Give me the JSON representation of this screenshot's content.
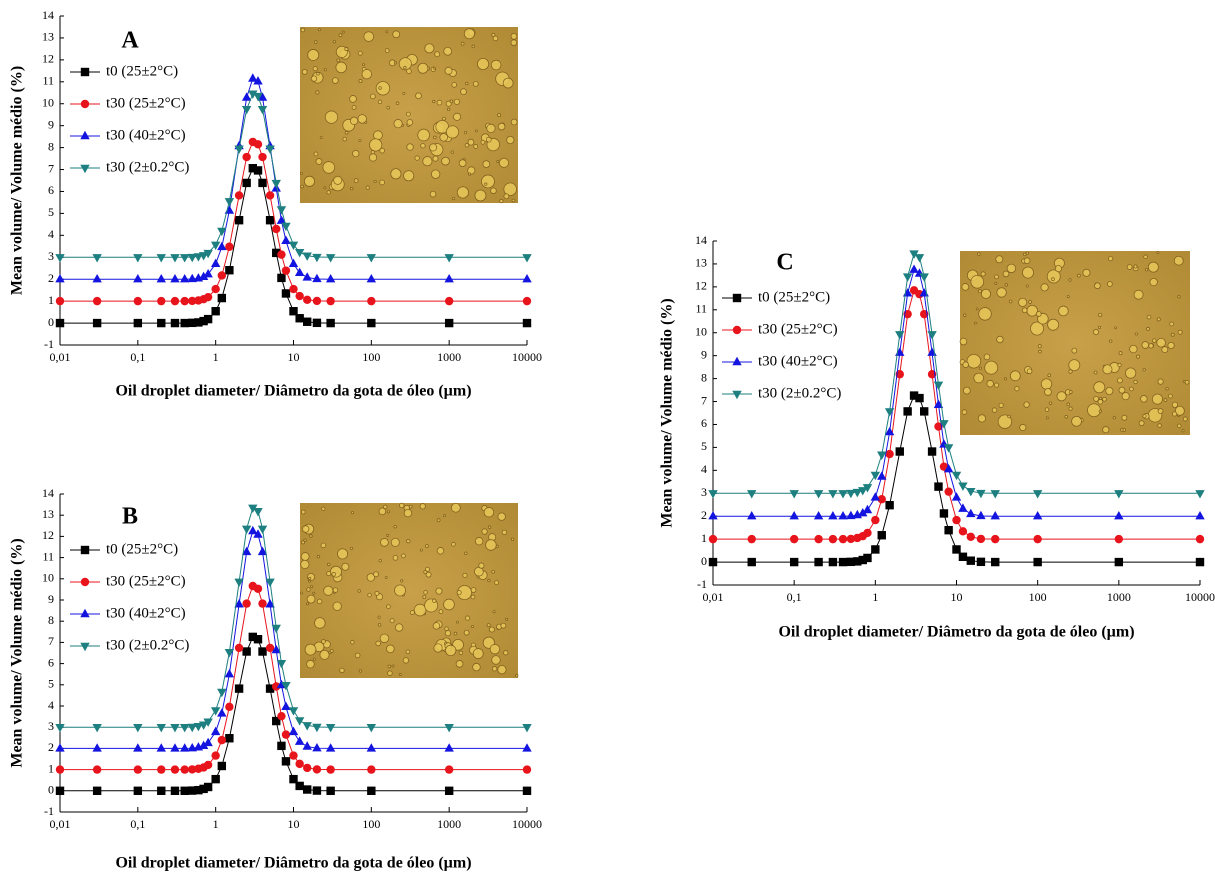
{
  "chart_data": [
    {
      "type": "line",
      "title": "A",
      "xscale": "log",
      "x_label": "Oil droplet diameter/ Diâmetro da gota de óleo (µm)",
      "y_label": "Mean volume/ Volume médio (%)",
      "xlim": [
        0.01,
        10000
      ],
      "ylim": [
        -1,
        14
      ],
      "xticks": [
        {
          "value": 0.01,
          "label": "0,01"
        },
        {
          "value": 0.1,
          "label": "0,1"
        },
        1,
        10,
        100,
        1000,
        10000
      ],
      "yticks": [
        -1,
        0,
        1,
        2,
        3,
        4,
        5,
        6,
        7,
        8,
        9,
        10,
        11,
        12,
        13,
        14
      ],
      "x": [
        0.01,
        0.03,
        0.1,
        0.2,
        0.3,
        0.4,
        0.5,
        0.6,
        0.7,
        0.8,
        1,
        1.2,
        1.5,
        2,
        2.5,
        3,
        3.5,
        4,
        5,
        6,
        7,
        8,
        10,
        12,
        15,
        20,
        30,
        100,
        1000,
        10000
      ],
      "series": [
        {
          "name": "t0 (25±2°C)",
          "color": "#000000",
          "marker": "square",
          "values": [
            0,
            0,
            0,
            0,
            0,
            0,
            0.01,
            0.03,
            0.09,
            0.18,
            0.54,
            1.14,
            2.41,
            4.69,
            6.39,
            7.06,
            6.96,
            6.39,
            4.69,
            3.2,
            2.06,
            1.35,
            0.54,
            0.22,
            0.06,
            0.01,
            0,
            0,
            0,
            0
          ]
        },
        {
          "name": "t30 (25±2°C)",
          "color": "#e8141c",
          "marker": "circle",
          "values": [
            1,
            1,
            1,
            1,
            1,
            1,
            1.01,
            1.03,
            1.09,
            1.18,
            1.55,
            2.17,
            3.48,
            5.82,
            7.57,
            8.26,
            8.15,
            7.57,
            5.82,
            4.29,
            3.12,
            2.39,
            1.55,
            1.23,
            1.06,
            1.01,
            1,
            1,
            1,
            1
          ]
        },
        {
          "name": "t30 (40±2°C)",
          "color": "#1414e0",
          "marker": "triangle-up",
          "values": [
            2,
            2,
            2,
            2,
            2,
            2,
            2.01,
            2.04,
            2.11,
            2.23,
            2.7,
            3.47,
            5.13,
            8.07,
            10.28,
            11.15,
            11.02,
            10.28,
            8.07,
            6.14,
            4.67,
            3.75,
            2.7,
            2.29,
            2.08,
            2.01,
            2,
            2,
            2,
            2
          ]
        },
        {
          "name": "t30 (2±0.2°C)",
          "color": "#1d7f7f",
          "marker": "triangle-down",
          "values": [
            3,
            3,
            3,
            3,
            3,
            3,
            3.01,
            3.04,
            3.09,
            3.19,
            3.57,
            4.2,
            5.55,
            7.95,
            9.75,
            10.46,
            10.35,
            9.75,
            7.95,
            6.38,
            5.18,
            4.43,
            3.57,
            3.23,
            3.07,
            3.01,
            3,
            3,
            3,
            3
          ]
        }
      ]
    },
    {
      "type": "line",
      "title": "B",
      "xscale": "log",
      "x_label": "Oil droplet diameter/ Diâmetro da gota de óleo (µm)",
      "y_label": "Mean volume/ Volume médio (%)",
      "xlim": [
        0.01,
        10000
      ],
      "ylim": [
        -1,
        14
      ],
      "xticks": [
        {
          "value": 0.01,
          "label": "0,01"
        },
        {
          "value": 0.1,
          "label": "0,1"
        },
        1,
        10,
        100,
        1000,
        10000
      ],
      "yticks": [
        -1,
        0,
        1,
        2,
        3,
        4,
        5,
        6,
        7,
        8,
        9,
        10,
        11,
        12,
        13,
        14
      ],
      "x": [
        0.01,
        0.03,
        0.1,
        0.2,
        0.3,
        0.4,
        0.5,
        0.6,
        0.7,
        0.8,
        1,
        1.2,
        1.5,
        2,
        2.5,
        3,
        3.5,
        4,
        5,
        6,
        7,
        8,
        10,
        12,
        15,
        20,
        30,
        100,
        1000,
        10000
      ],
      "series": [
        {
          "name": "t0 (25±2°C)",
          "color": "#000000",
          "marker": "square",
          "values": [
            0,
            0,
            0,
            0,
            0,
            0,
            0.01,
            0.03,
            0.09,
            0.18,
            0.55,
            1.17,
            2.48,
            4.82,
            6.57,
            7.26,
            7.15,
            6.57,
            4.82,
            3.29,
            2.12,
            1.39,
            0.55,
            0.23,
            0.06,
            0.01,
            0,
            0,
            0,
            0
          ]
        },
        {
          "name": "t30 (25±2°C)",
          "color": "#e8141c",
          "marker": "circle",
          "values": [
            1,
            1,
            1,
            1,
            1,
            1,
            1.01,
            1.04,
            1.1,
            1.22,
            1.66,
            2.39,
            3.96,
            6.74,
            8.83,
            9.66,
            9.53,
            8.83,
            6.74,
            4.92,
            3.52,
            2.65,
            1.66,
            1.27,
            1.08,
            1.01,
            1,
            1,
            1,
            1
          ]
        },
        {
          "name": "t30 (40±2°C)",
          "color": "#1414e0",
          "marker": "triangle-up",
          "values": [
            2,
            2,
            2,
            2,
            2,
            2,
            2.01,
            2.05,
            2.12,
            2.26,
            2.78,
            3.65,
            5.5,
            8.8,
            11.27,
            12.25,
            12.09,
            11.27,
            8.8,
            6.64,
            4.99,
            3.96,
            2.78,
            2.32,
            2.09,
            2.01,
            2,
            2,
            2,
            2
          ]
        },
        {
          "name": "t30 (2±0.2°C)",
          "color": "#1d7f7f",
          "marker": "triangle-down",
          "values": [
            3,
            3,
            3,
            3,
            3,
            3,
            3.01,
            3.05,
            3.12,
            3.26,
            3.79,
            4.66,
            6.54,
            9.86,
            12.36,
            13.35,
            13.19,
            12.36,
            9.86,
            7.68,
            6.02,
            4.98,
            3.79,
            3.32,
            3.09,
            3.01,
            3,
            3,
            3,
            3
          ]
        }
      ]
    },
    {
      "type": "line",
      "title": "C",
      "xscale": "log",
      "x_label": "Oil droplet diameter/ Diâmetro da gota de óleo (µm)",
      "y_label": "Mean volume/ Volume médio (%)",
      "xlim": [
        0.01,
        10000
      ],
      "ylim": [
        -1,
        14
      ],
      "xticks": [
        {
          "value": 0.01,
          "label": "0,01"
        },
        {
          "value": 0.1,
          "label": "0,1"
        },
        1,
        10,
        100,
        1000,
        10000
      ],
      "yticks": [
        -1,
        0,
        1,
        2,
        3,
        4,
        5,
        6,
        7,
        8,
        9,
        10,
        11,
        12,
        13,
        14
      ],
      "x": [
        0.01,
        0.03,
        0.1,
        0.2,
        0.3,
        0.4,
        0.5,
        0.6,
        0.7,
        0.8,
        1,
        1.2,
        1.5,
        2,
        2.5,
        3,
        3.5,
        4,
        5,
        6,
        7,
        8,
        10,
        12,
        15,
        20,
        30,
        100,
        1000,
        10000
      ],
      "series": [
        {
          "name": "t0 (25±2°C)",
          "color": "#000000",
          "marker": "square",
          "values": [
            0,
            0,
            0,
            0,
            0,
            0,
            0.01,
            0.03,
            0.09,
            0.18,
            0.55,
            1.17,
            2.48,
            4.82,
            6.57,
            7.26,
            7.15,
            6.57,
            4.82,
            3.29,
            2.12,
            1.39,
            0.55,
            0.23,
            0.06,
            0.01,
            0,
            0,
            0,
            0
          ]
        },
        {
          "name": "t30 (25±2°C)",
          "color": "#e8141c",
          "marker": "circle",
          "values": [
            1,
            1,
            1,
            1,
            1,
            1,
            1.01,
            1.05,
            1.13,
            1.27,
            1.83,
            2.74,
            4.71,
            8.19,
            10.81,
            11.85,
            11.68,
            10.81,
            8.19,
            5.91,
            4.16,
            3.07,
            1.83,
            1.34,
            1.1,
            1.01,
            1,
            1,
            1,
            1
          ]
        },
        {
          "name": "t30 (40±2°C)",
          "color": "#1414e0",
          "marker": "triangle-up",
          "values": [
            2,
            2,
            2,
            2,
            2,
            2,
            2.01,
            2.05,
            2.13,
            2.27,
            2.82,
            3.73,
            5.67,
            9.13,
            11.72,
            12.75,
            12.58,
            11.72,
            9.13,
            6.86,
            5.13,
            4.05,
            2.82,
            2.33,
            2.1,
            2.01,
            2,
            2,
            2,
            2
          ]
        },
        {
          "name": "t30 (2±0.2°C)",
          "color": "#1d7f7f",
          "marker": "triangle-down",
          "values": [
            3,
            3,
            3,
            3,
            3,
            3,
            3.01,
            3.05,
            3.13,
            3.26,
            3.8,
            4.68,
            6.57,
            9.93,
            12.45,
            13.45,
            13.29,
            12.45,
            9.93,
            7.73,
            6.05,
            5,
            3.8,
            3.33,
            3.09,
            3.01,
            3,
            3,
            3,
            3
          ]
        }
      ]
    }
  ]
}
